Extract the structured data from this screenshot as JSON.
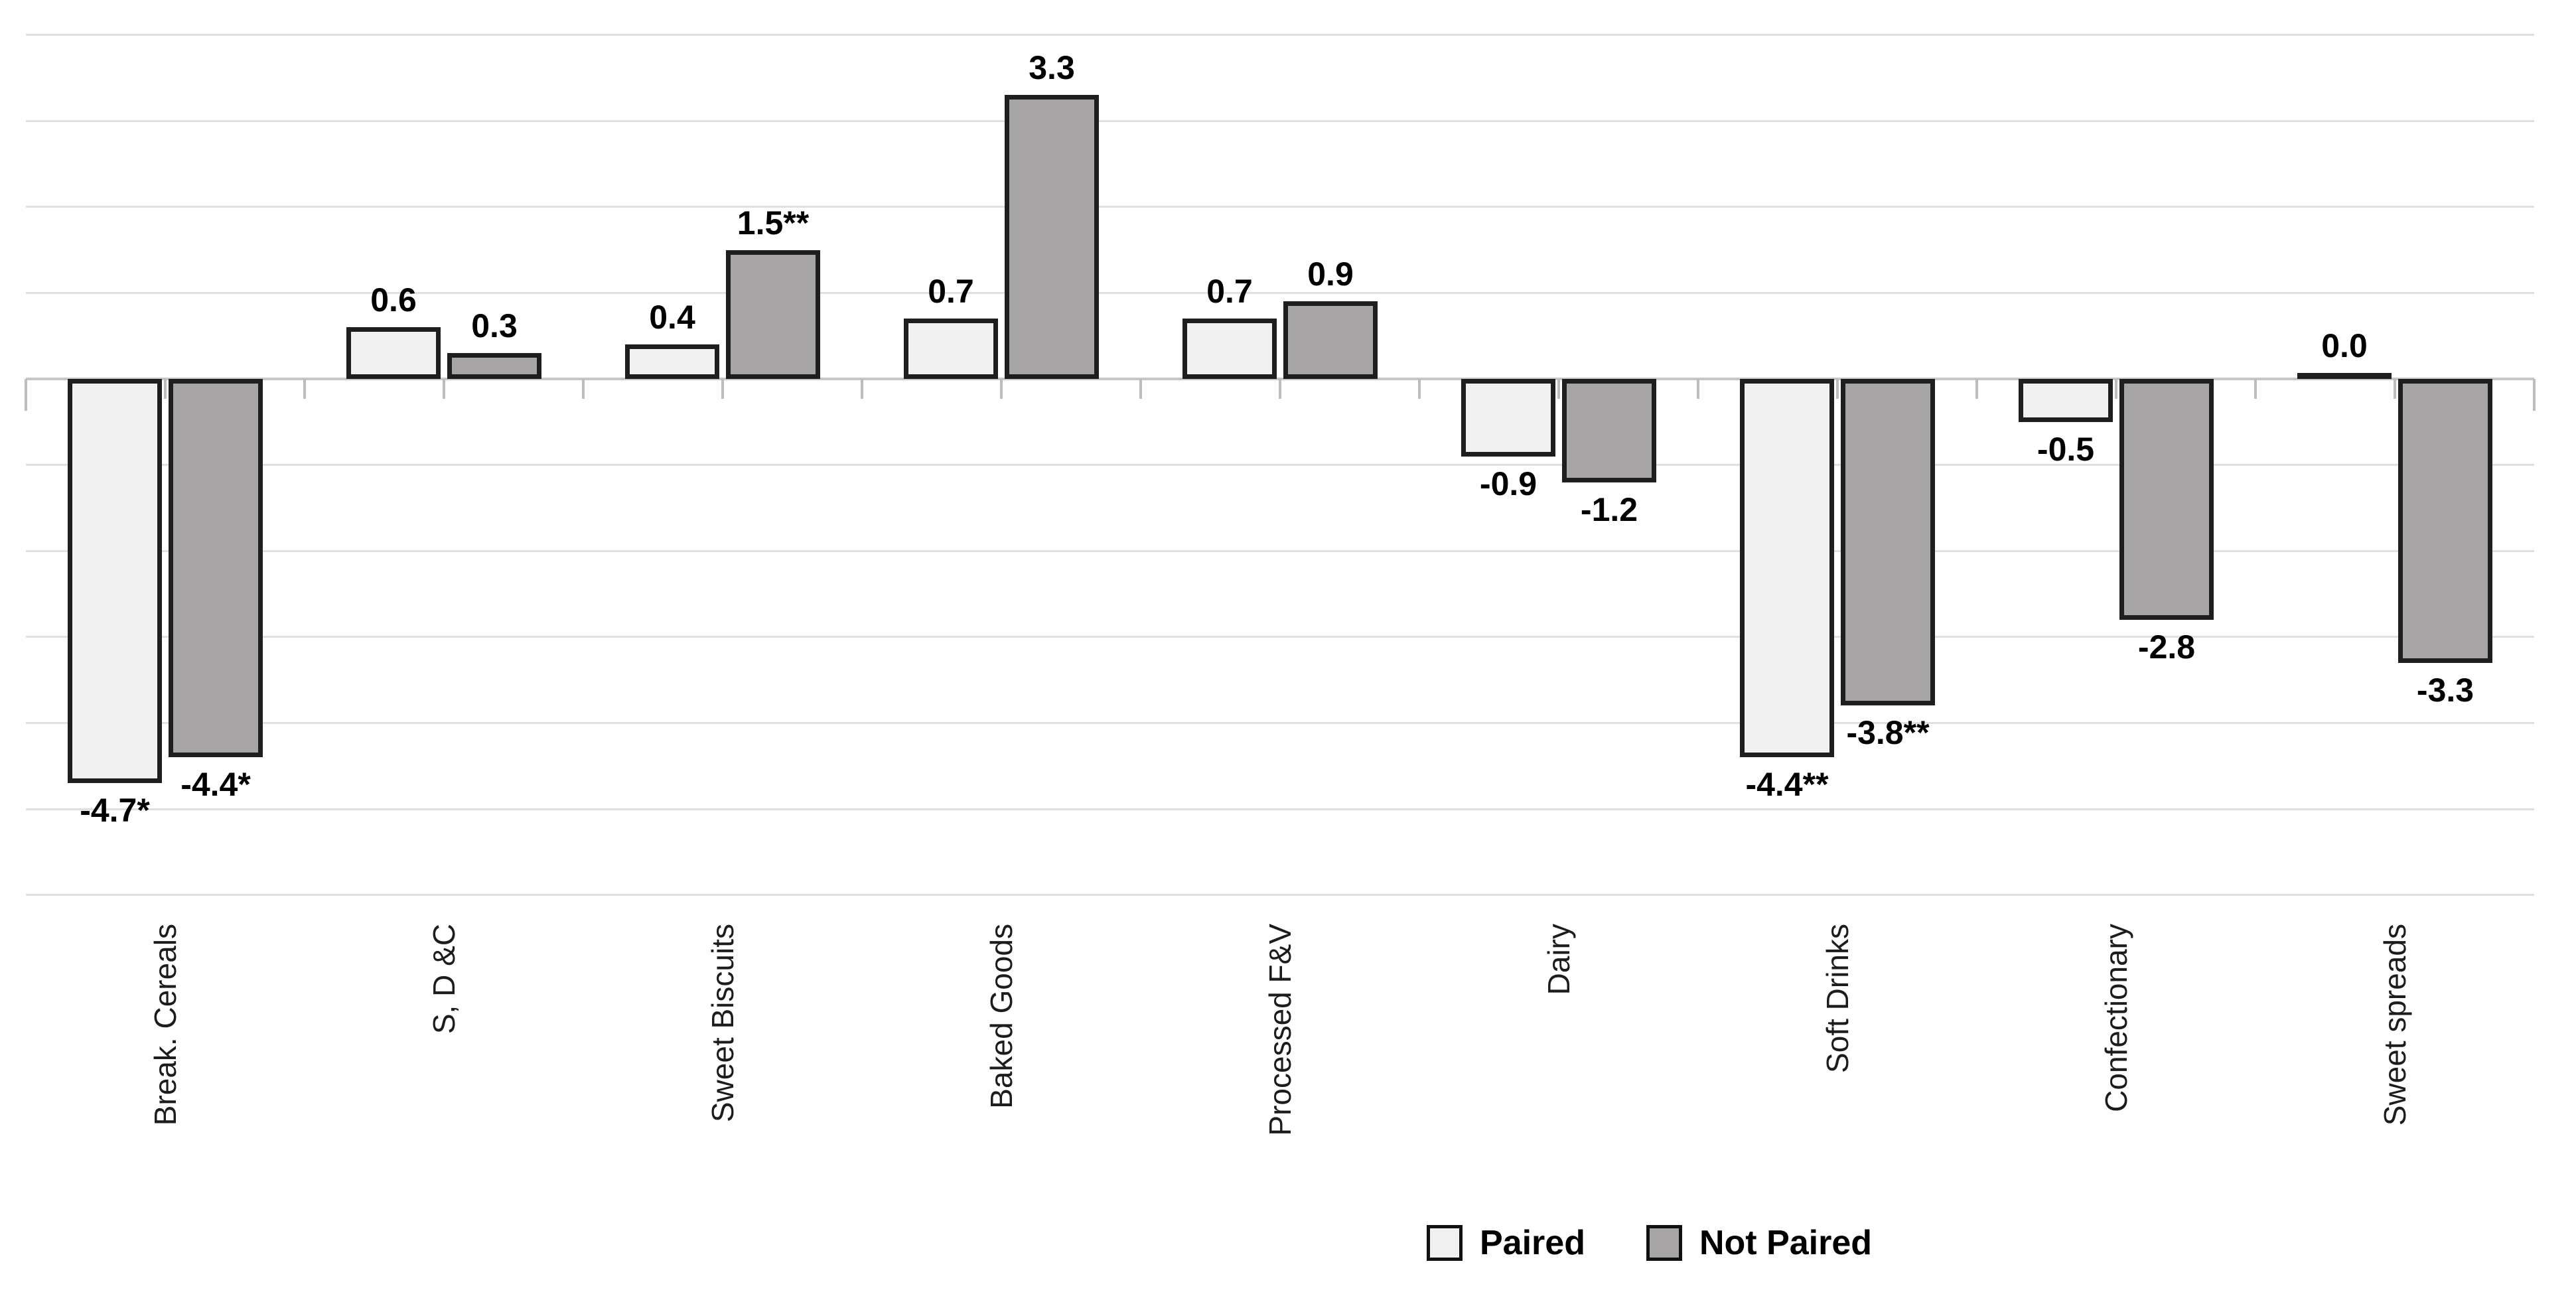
{
  "chart_data": {
    "type": "bar",
    "title": "",
    "xlabel": "",
    "ylabel": "",
    "categories": [
      "Break. Cereals",
      "S, D &C",
      "Sweet Biscuits",
      "Baked Goods",
      "Processed F&V",
      "Dairy",
      "Soft Drinks",
      "Confectionary",
      "Sweet spreads"
    ],
    "series": [
      {
        "name": "Paired",
        "fill": "#f2f1f2",
        "values": [
          -4.7,
          0.6,
          0.4,
          0.7,
          0.7,
          -0.9,
          -4.4,
          -0.5,
          0.0
        ],
        "labels": [
          "-4.7*",
          "0.6",
          "0.4",
          "0.7",
          "0.7",
          "-0.9",
          "-4.4**",
          "-0.5",
          "0.0"
        ]
      },
      {
        "name": "Not Paired",
        "fill": "#a7a5a6",
        "values": [
          -4.4,
          0.3,
          1.5,
          3.3,
          0.9,
          -1.2,
          -3.8,
          -2.8,
          -3.3
        ],
        "labels": [
          "-4.4*",
          "0.3",
          "1.5**",
          "3.3",
          "0.9",
          "-1.2",
          "-3.8**",
          "-2.8",
          "-3.3"
        ]
      }
    ],
    "ylim": [
      -6,
      4.2
    ],
    "y_major_unit": 1,
    "grid": true,
    "y_axis_tick_labels_shown": false,
    "value_labels_shown": true,
    "legend_position": "bottom-center"
  },
  "colors": {
    "background": "#ffffff",
    "paired_fill": "#f2f1f2",
    "not_paired_fill": "#a7a5a6",
    "bar_border": "#1e1e1e",
    "gridline": "#e0e0e0",
    "axis_line": "#c6c6c6",
    "tick": "#bdbdbd",
    "value_label_text": "#000000",
    "category_label_text": "#1c1c1c"
  }
}
